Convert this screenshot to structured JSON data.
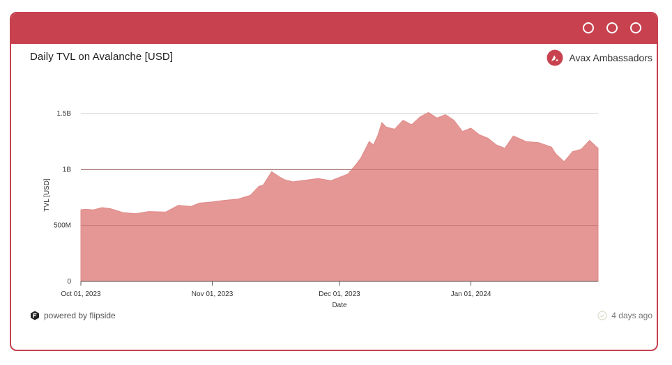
{
  "window": {
    "controls": [
      "circle-icon",
      "circle-icon",
      "circle-icon"
    ]
  },
  "header": {
    "title": "Daily TVL on Avalanche [USD]",
    "brand_label": "Avax Ambassadors",
    "brand_icon": "avalanche-logo-icon"
  },
  "footer": {
    "powered_by": "powered by flipside",
    "updated": "4 days ago",
    "left_icon": "flipside-logo-icon",
    "right_icon": "check-circle-icon"
  },
  "colors": {
    "accent": "#c8414f",
    "area_fill": "#e49795",
    "area_stroke": "#e08a88"
  },
  "chart_data": {
    "type": "area",
    "title": "Daily TVL on Avalanche [USD]",
    "xlabel": "Date",
    "ylabel": "TVL [USD]",
    "ylim": [
      0,
      1500000000
    ],
    "xlim": [
      "2023-10-01",
      "2024-01-31"
    ],
    "y_ticks": [
      {
        "value": 0,
        "label": "0"
      },
      {
        "value": 500000000,
        "label": "500M"
      },
      {
        "value": 1000000000,
        "label": "1B"
      },
      {
        "value": 1500000000,
        "label": "1.5B"
      }
    ],
    "x_ticks": [
      {
        "value": "2023-10-01",
        "label": "Oct 01, 2023"
      },
      {
        "value": "2023-11-01",
        "label": "Nov 01, 2023"
      },
      {
        "value": "2023-12-01",
        "label": "Dec 01, 2023"
      },
      {
        "value": "2024-01-01",
        "label": "Jan 01, 2024"
      }
    ],
    "grid": true,
    "series": [
      {
        "x": [
          "2023-10-01",
          "2023-10-02",
          "2023-10-04",
          "2023-10-06",
          "2023-10-08",
          "2023-10-11",
          "2023-10-14",
          "2023-10-17",
          "2023-10-21",
          "2023-10-24",
          "2023-10-27",
          "2023-10-29",
          "2023-11-01",
          "2023-11-04",
          "2023-11-07",
          "2023-11-10",
          "2023-11-12",
          "2023-11-13",
          "2023-11-15",
          "2023-11-17",
          "2023-11-18",
          "2023-11-20",
          "2023-11-23",
          "2023-11-26",
          "2023-11-29",
          "2023-12-01",
          "2023-12-03",
          "2023-12-05",
          "2023-12-06",
          "2023-12-08",
          "2023-12-09",
          "2023-12-10",
          "2023-12-11",
          "2023-12-12",
          "2023-12-14",
          "2023-12-16",
          "2023-12-18",
          "2023-12-20",
          "2023-12-22",
          "2023-12-24",
          "2023-12-26",
          "2023-12-28",
          "2023-12-30",
          "2024-01-01",
          "2024-01-03",
          "2024-01-05",
          "2024-01-07",
          "2024-01-09",
          "2024-01-11",
          "2024-01-14",
          "2024-01-17",
          "2024-01-20",
          "2024-01-21",
          "2024-01-23",
          "2024-01-25",
          "2024-01-27",
          "2024-01-29",
          "2024-01-31"
        ],
        "values": [
          640000000,
          645000000,
          640000000,
          660000000,
          650000000,
          615000000,
          605000000,
          625000000,
          620000000,
          680000000,
          670000000,
          700000000,
          710000000,
          725000000,
          735000000,
          770000000,
          850000000,
          860000000,
          980000000,
          930000000,
          910000000,
          890000000,
          905000000,
          920000000,
          900000000,
          930000000,
          960000000,
          1050000000,
          1100000000,
          1250000000,
          1220000000,
          1300000000,
          1420000000,
          1380000000,
          1360000000,
          1440000000,
          1400000000,
          1470000000,
          1510000000,
          1460000000,
          1490000000,
          1440000000,
          1340000000,
          1370000000,
          1310000000,
          1280000000,
          1220000000,
          1190000000,
          1300000000,
          1250000000,
          1240000000,
          1200000000,
          1140000000,
          1070000000,
          1160000000,
          1180000000,
          1260000000,
          1190000000
        ]
      }
    ]
  }
}
